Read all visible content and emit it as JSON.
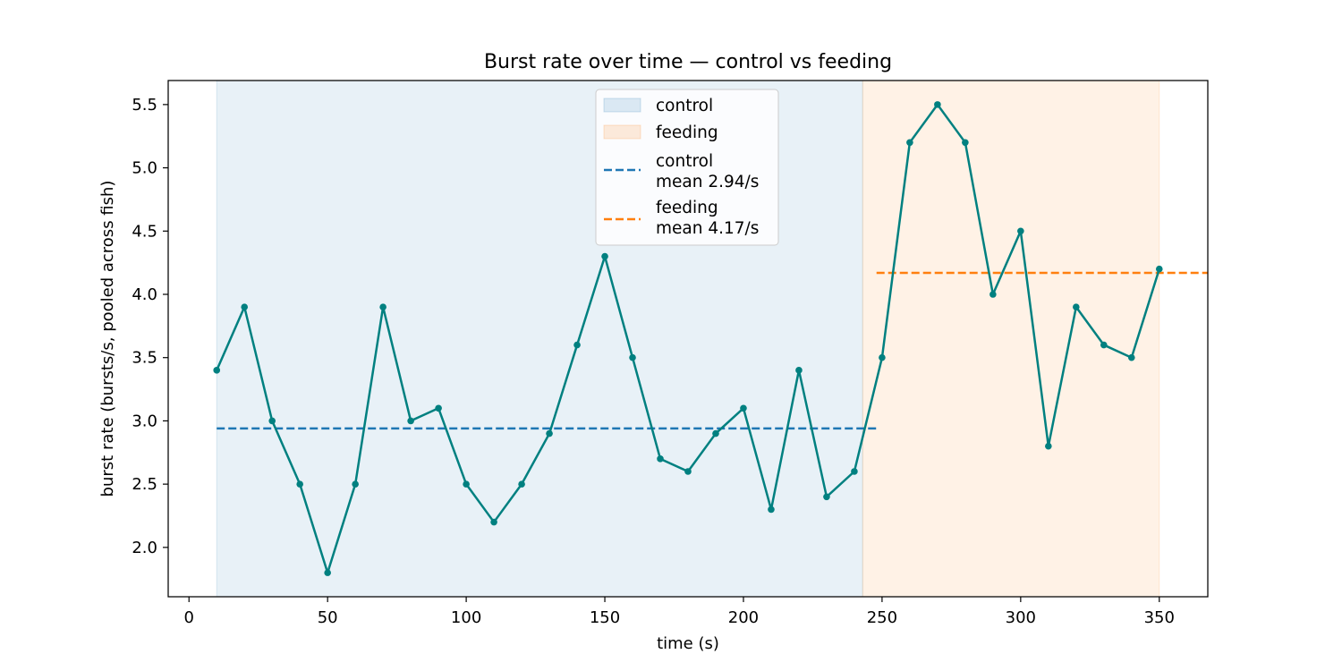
{
  "chart_data": {
    "type": "line",
    "title": "Burst rate over time — control vs feeding",
    "xlabel": "time (s)",
    "ylabel": "burst rate (bursts/s, pooled across fish)",
    "xlim": [
      -7.5,
      367.5
    ],
    "ylim": [
      1.61,
      5.69
    ],
    "xticks": [
      0,
      50,
      100,
      150,
      200,
      250,
      300,
      350
    ],
    "yticks": [
      2.0,
      2.5,
      3.0,
      3.5,
      4.0,
      4.5,
      5.0,
      5.5
    ],
    "xtick_labels": [
      "0",
      "50",
      "100",
      "150",
      "200",
      "250",
      "300",
      "350"
    ],
    "ytick_labels": [
      "2.0",
      "2.5",
      "3.0",
      "3.5",
      "4.0",
      "4.5",
      "5.0",
      "5.5"
    ],
    "grid": false,
    "legend_position": "top-center",
    "series": [
      {
        "color": "#008080",
        "x": [
          10,
          20,
          30,
          40,
          50,
          60,
          70,
          80,
          90,
          100,
          110,
          120,
          130,
          140,
          150,
          160,
          170,
          180,
          190,
          200,
          210,
          220,
          230,
          240,
          250,
          260,
          270,
          280,
          290,
          300,
          310,
          320,
          330,
          340,
          350
        ],
        "y": [
          3.4,
          3.9,
          3.0,
          2.5,
          1.8,
          2.5,
          3.9,
          3.0,
          3.1,
          2.5,
          2.2,
          2.5,
          2.9,
          3.6,
          4.3,
          3.5,
          2.7,
          2.6,
          2.9,
          3.1,
          2.3,
          3.4,
          2.4,
          2.6,
          3.5,
          5.2,
          5.5,
          5.2,
          4.0,
          4.5,
          2.8,
          3.9,
          3.6,
          3.5,
          4.2
        ]
      }
    ],
    "regions": [
      {
        "label": "control",
        "x_start": 10,
        "x_end": 243,
        "color": "#1f77b4",
        "opacity": 0.1
      },
      {
        "label": "feeding",
        "x_start": 243,
        "x_end": 350,
        "color": "#ff7f0e",
        "opacity": 0.1
      }
    ],
    "mean_lines": [
      {
        "label_line1": "control",
        "label_line2": "mean 2.94/s",
        "value": 2.94,
        "x_start": 10,
        "x_end": 248,
        "color": "#1f77b4"
      },
      {
        "label_line1": "feeding",
        "label_line2": "mean 4.17/s",
        "value": 4.17,
        "x_start": 248,
        "x_end": 367.5,
        "color": "#ff7f0e"
      }
    ]
  }
}
